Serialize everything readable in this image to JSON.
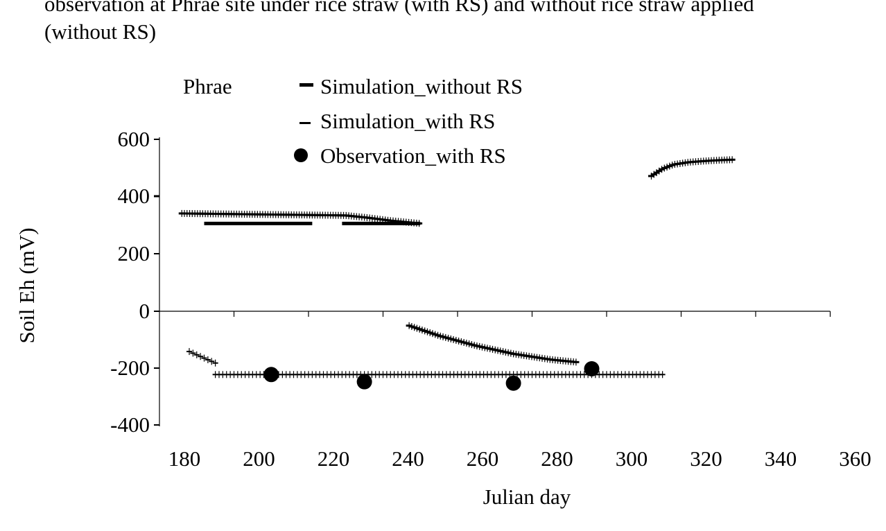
{
  "caption": {
    "line1": "observation at Phrae site under rice straw (with RS) and without rice straw applied",
    "line2": "(without RS)"
  },
  "chart_data": {
    "type": "scatter",
    "site_label": "Phrae",
    "xlabel": "Julian day",
    "ylabel": "Soil Eh (mV)",
    "xlim": [
      180,
      360
    ],
    "ylim": [
      -400,
      600
    ],
    "x_ticks": [
      "180",
      "200",
      "220",
      "240",
      "260",
      "280",
      "300",
      "320",
      "340",
      "360"
    ],
    "y_ticks": [
      "600",
      "400",
      "200",
      "0",
      "-200",
      "-400"
    ],
    "legend_position": "top",
    "series": [
      {
        "name": "Simulation_without RS",
        "marker": "dash-thick",
        "segments": [
          {
            "x": [
              192,
              221
            ],
            "y": [
              305,
              305
            ]
          },
          {
            "x": [
              229,
              250
            ],
            "y": [
              305,
              305
            ]
          }
        ],
        "curves": [
          {
            "x": [
              188,
              195
            ],
            "y": [
              -140,
              -180
            ]
          },
          {
            "x": [
              195,
              315
            ],
            "y": [
              -220,
              -220
            ]
          }
        ]
      },
      {
        "name": "Simulation_with RS",
        "marker": "dash-thin",
        "curves": [
          {
            "x": [
              186,
              230,
              236,
              242,
              250
            ],
            "y": [
              340,
              333,
              325,
              315,
              305
            ]
          },
          {
            "x": [
              247,
              255,
              265,
              275,
              285,
              292
            ],
            "y": [
              -50,
              -85,
              -120,
              -148,
              -168,
              -177
            ]
          },
          {
            "x": [
              312,
              315,
              318,
              322,
              326,
              330,
              334
            ],
            "y": [
              470,
              495,
              510,
              518,
              522,
              525,
              527
            ]
          }
        ]
      },
      {
        "name": "Observation_with RS",
        "marker": "circle",
        "points": [
          {
            "x": 210,
            "y": -220
          },
          {
            "x": 235,
            "y": -245
          },
          {
            "x": 275,
            "y": -250
          },
          {
            "x": 296,
            "y": -200
          }
        ]
      }
    ]
  }
}
